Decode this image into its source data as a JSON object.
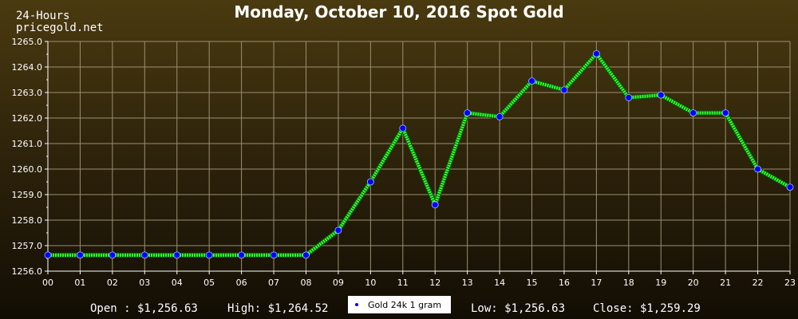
{
  "header": {
    "site_line1": "24-Hours",
    "site_line2": "pricegold.net"
  },
  "stats": {
    "open": "Open : $1,256.63",
    "high": "High: $1,264.52",
    "low": "Low: $1,256.63",
    "close": "Close: $1,259.29"
  },
  "chart_data": {
    "type": "line",
    "title": "Monday, October 10, 2016 Spot Gold",
    "xlabel": "",
    "ylabel": "",
    "categories": [
      "00",
      "01",
      "02",
      "03",
      "04",
      "05",
      "06",
      "07",
      "08",
      "09",
      "10",
      "11",
      "12",
      "13",
      "14",
      "15",
      "16",
      "17",
      "18",
      "19",
      "20",
      "21",
      "22",
      "23"
    ],
    "series": [
      {
        "name": "Gold 24k 1 gram",
        "values": [
          1256.63,
          1256.63,
          1256.63,
          1256.63,
          1256.63,
          1256.63,
          1256.63,
          1256.63,
          1256.63,
          1257.6,
          1259.5,
          1261.6,
          1258.6,
          1262.2,
          1262.05,
          1263.45,
          1263.1,
          1264.52,
          1262.8,
          1262.9,
          1262.2,
          1262.2,
          1260.0,
          1259.29
        ]
      }
    ],
    "ylim": [
      1256.0,
      1265.0
    ],
    "yticks": [
      "1256.0",
      "1257.0",
      "1258.0",
      "1259.0",
      "1260.0",
      "1261.0",
      "1262.0",
      "1263.0",
      "1264.0",
      "1265.0"
    ],
    "grid": true,
    "legend": "bottom-center",
    "colors": {
      "line": "#33ff33",
      "marker": "#0000ff",
      "grid": "#9a9070",
      "axis": "#ffffff"
    }
  }
}
